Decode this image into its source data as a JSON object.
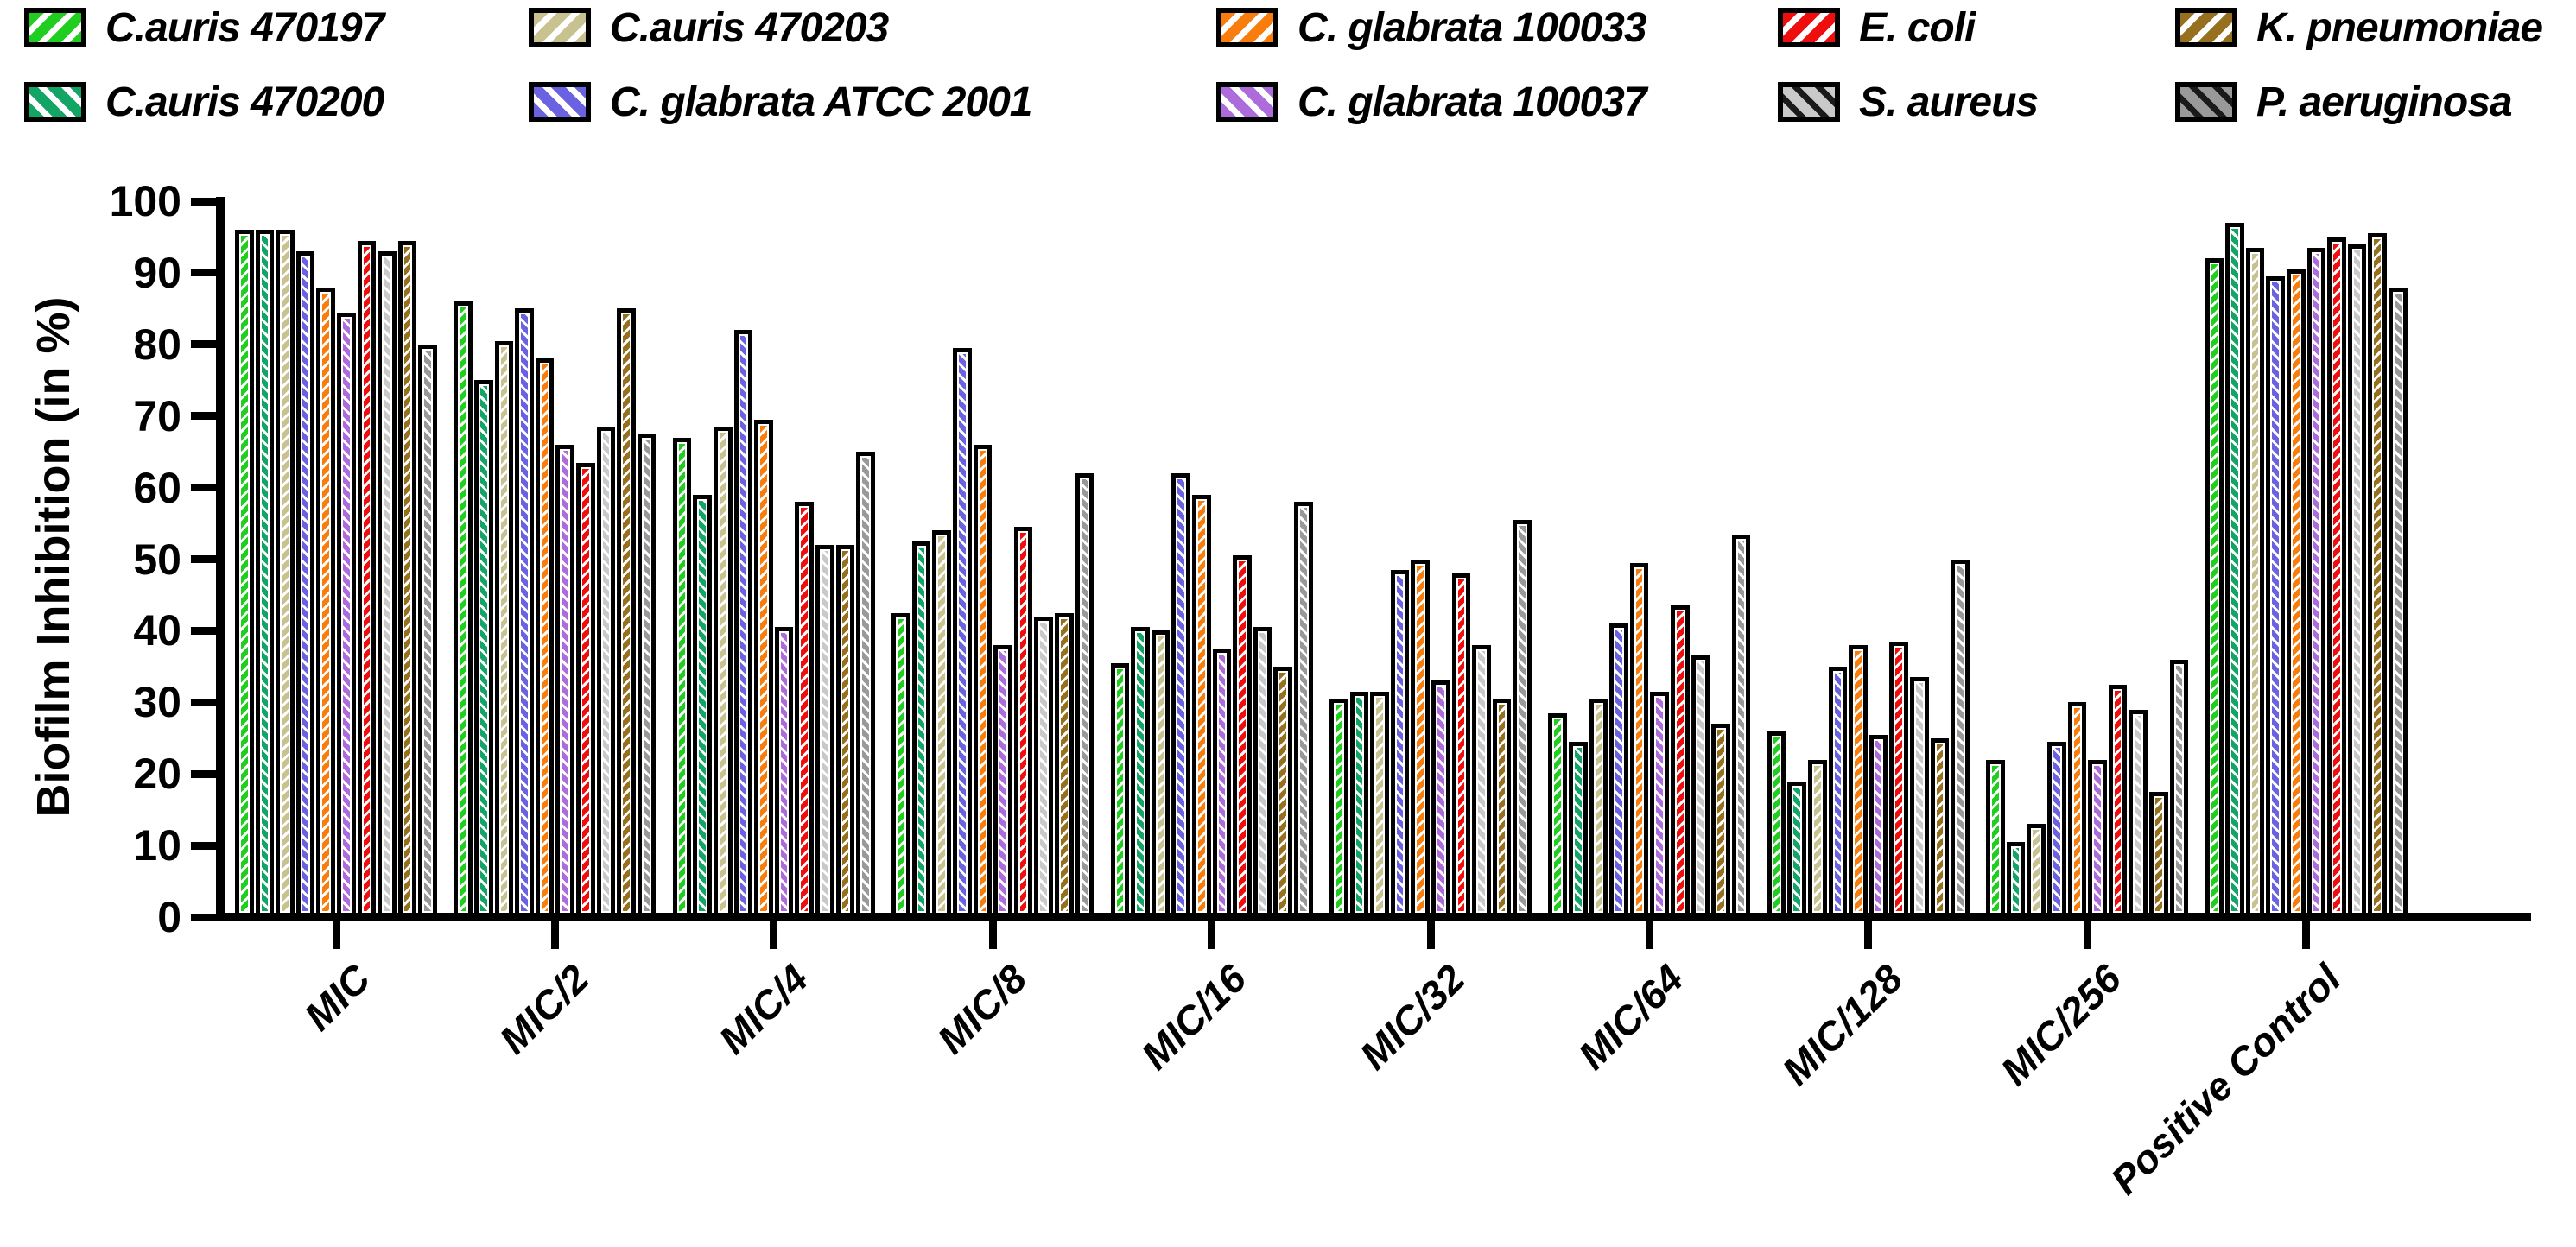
{
  "chart_data": {
    "type": "bar",
    "title": "",
    "ylabel": "Biofilm Inhibition (in %)",
    "xlabel": "",
    "ylim": [
      0,
      100
    ],
    "yticks": [
      0,
      10,
      20,
      30,
      40,
      50,
      60,
      70,
      80,
      90,
      100
    ],
    "grid": false,
    "legend_position": "top",
    "categories": [
      "MIC",
      "MIC/2",
      "MIC/4",
      "MIC/8",
      "MIC/16",
      "MIC/32",
      "MIC/64",
      "MIC/128",
      "MIC/256",
      "Positive Control"
    ],
    "legend_rows": [
      [
        0,
        2,
        4,
        6,
        8
      ],
      [
        1,
        3,
        5,
        7,
        9
      ]
    ],
    "series": [
      {
        "name": "C.auris 470197",
        "color": "#1FCE1F",
        "stripe_direction": "forward",
        "bar_stripe_color": "#ffffff",
        "swatch_stripe_color": "#ffffff",
        "values": [
          96,
          86,
          67,
          42.5,
          35.5,
          30.5,
          28.5,
          26,
          22,
          92
        ]
      },
      {
        "name": "C.auris 470200",
        "color": "#12A566",
        "stripe_direction": "back",
        "bar_stripe_color": "#ffffff",
        "swatch_stripe_color": "#ffffff",
        "values": [
          96,
          75,
          59,
          52.5,
          40.5,
          31.5,
          24.5,
          19,
          10.5,
          97
        ]
      },
      {
        "name": "C.auris 470203",
        "color": "#C8C291",
        "stripe_direction": "forward",
        "bar_stripe_color": "#ffffff",
        "swatch_stripe_color": "#ffffff",
        "values": [
          96,
          80.5,
          68.5,
          54,
          40,
          31.5,
          30.5,
          22,
          13,
          93.5
        ]
      },
      {
        "name": "C. glabrata ATCC 2001",
        "color": "#6A62E0",
        "stripe_direction": "back",
        "bar_stripe_color": "#ffffff",
        "swatch_stripe_color": "#ffffff",
        "values": [
          93,
          85,
          82,
          79.5,
          62,
          48.5,
          41,
          35,
          24.5,
          89.5
        ]
      },
      {
        "name": "C. glabrata 100033",
        "color": "#F97D0C",
        "stripe_direction": "forward",
        "bar_stripe_color": "#ffffff",
        "swatch_stripe_color": "#ffffff",
        "values": [
          88,
          78,
          69.5,
          66,
          59,
          50,
          49.5,
          38,
          30,
          90.5
        ]
      },
      {
        "name": "C. glabrata 100037",
        "color": "#AE6BDC",
        "stripe_direction": "back",
        "bar_stripe_color": "#ffffff",
        "swatch_stripe_color": "#ffffff",
        "values": [
          84.5,
          66,
          40.5,
          38,
          37.5,
          33,
          31.5,
          25.5,
          22,
          93.5
        ]
      },
      {
        "name": "E. coli",
        "color": "#EE0E0E",
        "stripe_direction": "forward",
        "bar_stripe_color": "#ffffff",
        "swatch_stripe_color": "#ffffff",
        "values": [
          94.5,
          63.5,
          58,
          54.5,
          50.5,
          48,
          43.5,
          38.5,
          32.5,
          95
        ]
      },
      {
        "name": "S. aureus",
        "color": "#C9C9C9",
        "stripe_direction": "back",
        "bar_stripe_color": "#ffffff",
        "swatch_stripe_color": "#1a1a1a",
        "values": [
          93,
          68.5,
          52,
          42,
          40.5,
          38,
          36.5,
          33.5,
          29,
          94
        ]
      },
      {
        "name": "K. pneumoniae",
        "color": "#97701F",
        "stripe_direction": "forward",
        "bar_stripe_color": "#ffffff",
        "swatch_stripe_color": "#ffffff",
        "values": [
          94.5,
          85,
          52,
          42.5,
          35,
          30.5,
          27,
          25,
          17.5,
          95.5
        ]
      },
      {
        "name": "P. aeruginosa",
        "color": "#999999",
        "stripe_direction": "back",
        "bar_stripe_color": "#ffffff",
        "swatch_stripe_color": "#1a1a1a",
        "values": [
          80,
          67.5,
          65,
          62,
          58,
          55.5,
          53.5,
          50,
          36,
          88
        ]
      }
    ],
    "colors": {
      "axis": "#000000",
      "text": "#000000",
      "background": "#ffffff"
    }
  }
}
